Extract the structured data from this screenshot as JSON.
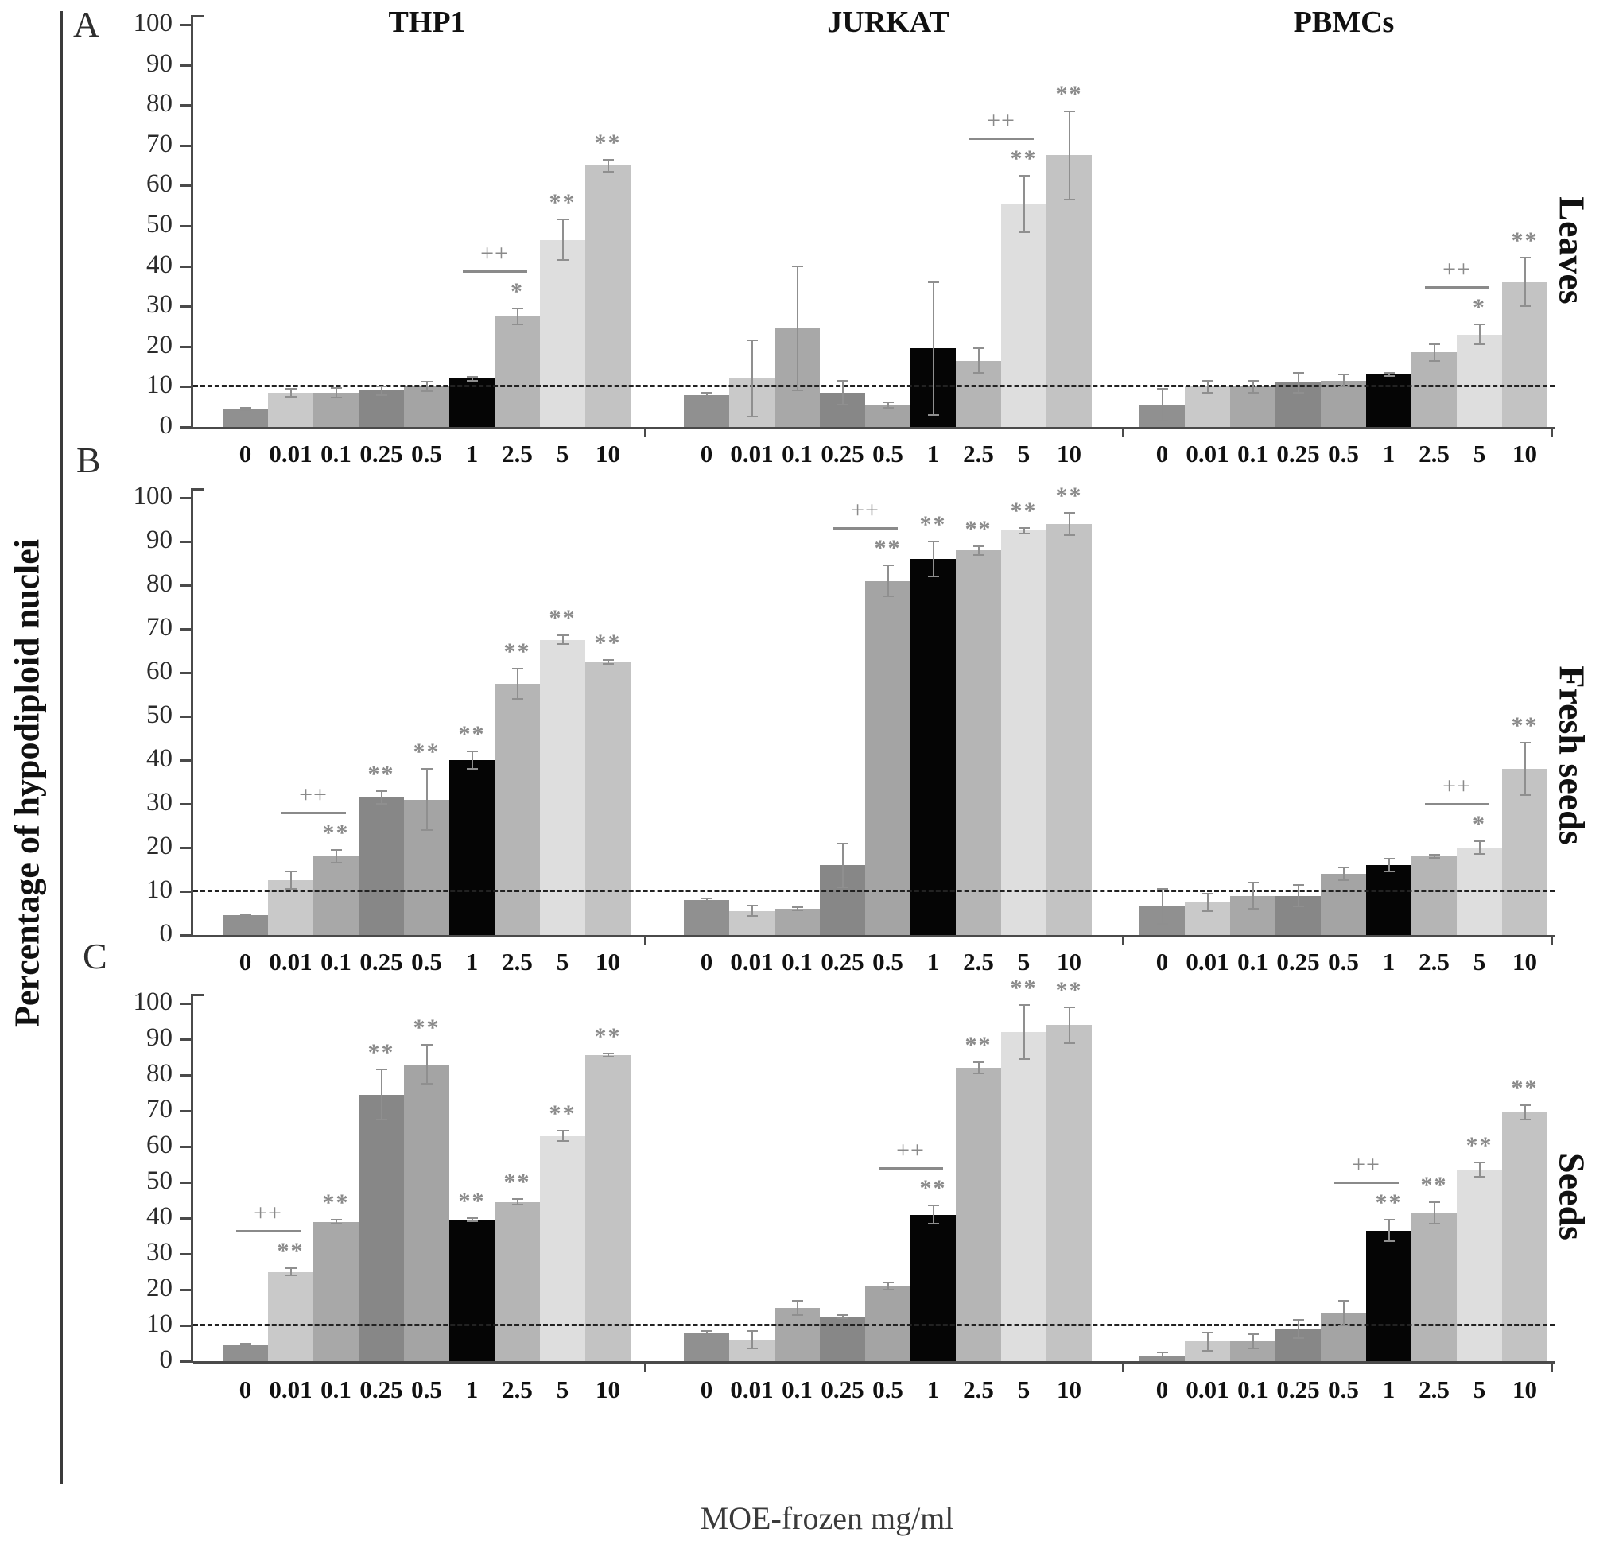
{
  "figure_title": "",
  "chart_data": {
    "type": "bar",
    "title": "",
    "xlabel": "MOE-frozen mg/ml",
    "ylabel": "Percentage of hypodiploid nuclei",
    "ylim": [
      0,
      100
    ],
    "ytick_step": 10,
    "grid": "off",
    "legend": "none",
    "threshold_line_y": 10,
    "threshold_line_style": "black dashed, spans full width of each panel row",
    "categories": [
      "0",
      "0.01",
      "0.1",
      "0.25",
      "0.5",
      "1",
      "2.5",
      "5",
      "10"
    ],
    "bar_colors": [
      "#909090",
      "#c9c9c9",
      "#a8a8a8",
      "#878787",
      "#a4a4a4",
      "#050505",
      "#b5b5b5",
      "#dedede",
      "#c3c3c3"
    ],
    "columns": [
      "THP1",
      "JURKAT",
      "PBMCs"
    ],
    "rows": [
      {
        "panel": "A",
        "label": "Leaves",
        "groups": [
          {
            "column": "THP1",
            "values": [
              4.5,
              8.5,
              8.5,
              9,
              10,
              12,
              27.5,
              46.5,
              65
            ],
            "errors": [
              0.3,
              1,
              1.2,
              1,
              1.2,
              0.5,
              2,
              5,
              1.5
            ],
            "sig": [
              "",
              "",
              "",
              "",
              "",
              "",
              "*",
              "**",
              "**"
            ],
            "bracket": {
              "from": 5,
              "to": 6,
              "label": "++"
            }
          },
          {
            "column": "JURKAT",
            "values": [
              8,
              12,
              24.5,
              8.5,
              5.5,
              19.5,
              16.5,
              55.5,
              67.5
            ],
            "errors": [
              0.4,
              9.5,
              15.5,
              3,
              0.7,
              16.5,
              3,
              7,
              11
            ],
            "sig": [
              "",
              "",
              "",
              "",
              "",
              "",
              "",
              "**",
              "**"
            ],
            "bracket": {
              "from": 6,
              "to": 7,
              "label": "++"
            }
          },
          {
            "column": "PBMCs",
            "values": [
              5.5,
              10,
              10,
              11,
              11.5,
              13,
              18.5,
              23,
              36
            ],
            "errors": [
              4,
              1.5,
              1.5,
              2.5,
              1.5,
              0.4,
              2,
              2.5,
              6
            ],
            "sig": [
              "",
              "",
              "",
              "",
              "",
              "",
              "",
              "*",
              "**"
            ],
            "bracket": {
              "from": 6,
              "to": 7,
              "label": "++"
            }
          }
        ]
      },
      {
        "panel": "B",
        "label": "Fresh seeds",
        "groups": [
          {
            "column": "THP1",
            "values": [
              4.5,
              12.5,
              18,
              31.5,
              31,
              40,
              57.5,
              67.5,
              62.5
            ],
            "errors": [
              0.3,
              2,
              1.5,
              1.5,
              7,
              2,
              3.5,
              1,
              0.5
            ],
            "sig": [
              "",
              "",
              "**",
              "**",
              "**",
              "**",
              "**",
              "**",
              "**"
            ],
            "bracket": {
              "from": 1,
              "to": 2,
              "label": "++"
            }
          },
          {
            "column": "JURKAT",
            "values": [
              8,
              5.5,
              6,
              16,
              81,
              86,
              88,
              92.5,
              94
            ],
            "errors": [
              0.4,
              1.2,
              0.4,
              5,
              3.5,
              4,
              1,
              0.6,
              2.5
            ],
            "sig": [
              "",
              "",
              "",
              "",
              "**",
              "**",
              "**",
              "**",
              "**"
            ],
            "bracket": {
              "from": 3,
              "to": 4,
              "label": "++"
            }
          },
          {
            "column": "PBMCs",
            "values": [
              6.5,
              7.5,
              9,
              9,
              14,
              16,
              18,
              20,
              38
            ],
            "errors": [
              4,
              2,
              3,
              2.5,
              1.5,
              1.5,
              0.3,
              1.5,
              6
            ],
            "sig": [
              "",
              "",
              "",
              "",
              "",
              "",
              "",
              "*",
              "**"
            ],
            "bracket": {
              "from": 6,
              "to": 7,
              "label": "++"
            }
          }
        ]
      },
      {
        "panel": "C",
        "label": "Seeds",
        "groups": [
          {
            "column": "THP1",
            "values": [
              4.5,
              25,
              39,
              74.5,
              83,
              39.5,
              44.5,
              63,
              85.5
            ],
            "errors": [
              0.3,
              1,
              0.6,
              7,
              5.5,
              0.4,
              0.8,
              1.5,
              0.4
            ],
            "sig": [
              "",
              "**",
              "**",
              "**",
              "**",
              "**",
              "**",
              "**",
              "**"
            ],
            "bracket": {
              "from": 0,
              "to": 1,
              "label": "++"
            }
          },
          {
            "column": "JURKAT",
            "values": [
              8,
              6,
              15,
              12.5,
              21,
              41,
              82,
              92,
              94
            ],
            "errors": [
              0.4,
              2.5,
              2,
              0.4,
              1,
              2.5,
              1.5,
              7.5,
              5
            ],
            "sig": [
              "",
              "",
              "",
              "",
              "",
              "**",
              "**",
              "**",
              "**"
            ],
            "bracket": {
              "from": 4,
              "to": 5,
              "label": "++"
            }
          },
          {
            "column": "PBMCs",
            "values": [
              1.5,
              5.5,
              5.5,
              9,
              13.5,
              36.5,
              41.5,
              53.5,
              69.5
            ],
            "errors": [
              1,
              2.5,
              2,
              2.5,
              3.5,
              3,
              3,
              2,
              2
            ],
            "sig": [
              "",
              "",
              "",
              "",
              "",
              "**",
              "**",
              "**",
              "**"
            ],
            "bracket": {
              "from": 4,
              "to": 5,
              "label": "++"
            }
          }
        ]
      }
    ]
  }
}
